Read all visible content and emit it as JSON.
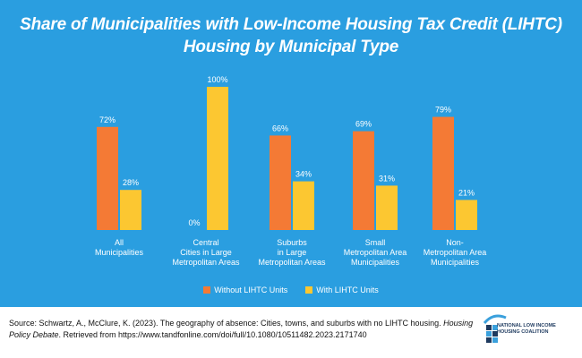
{
  "title_line1": "Share of Municipalities with Low-Income Housing Tax Credit (LIHTC)",
  "title_line2": "Housing by Municipal Type",
  "chart_data": {
    "type": "bar",
    "categories": [
      "All\nMunicipalities",
      "Central\nCities in Large\nMetropolitan Areas",
      "Suburbs\nin Large\nMetropolitan Areas",
      "Small\nMetropolitan Area\nMunicipalities",
      "Non-\nMetropolitan Area\nMunicipalities"
    ],
    "series": [
      {
        "name": "Without LIHTC Units",
        "values": [
          72,
          0,
          66,
          69,
          79
        ],
        "labels": [
          "72%",
          "0%",
          "66%",
          "69%",
          "79%"
        ],
        "color": "#f47a35"
      },
      {
        "name": "With LIHTC Units",
        "values": [
          28,
          100,
          34,
          31,
          21
        ],
        "labels": [
          "28%",
          "100%",
          "34%",
          "31%",
          "21%"
        ],
        "color": "#fcc731"
      }
    ],
    "ylim": [
      0,
      100
    ],
    "grid": false,
    "legend_position": "bottom"
  },
  "footer": {
    "source_plain": "Source: Schwartz, A., McClure, K. (2023). The geography of absence: Cities, towns, and suburbs with no LIHTC housing. ",
    "source_italic": "Housing Policy Debate",
    "source_tail": ". Retrieved from https://www.tandfonline.com/doi/full/10.1080/10511482.2023.2171740",
    "logo_line1": "NATIONAL LOW INCOME",
    "logo_line2": "HOUSING COALITION"
  },
  "colors": {
    "background": "#2a9ee0",
    "without": "#f47a35",
    "with": "#fcc731",
    "logo_accent": "#3aa0dc"
  }
}
